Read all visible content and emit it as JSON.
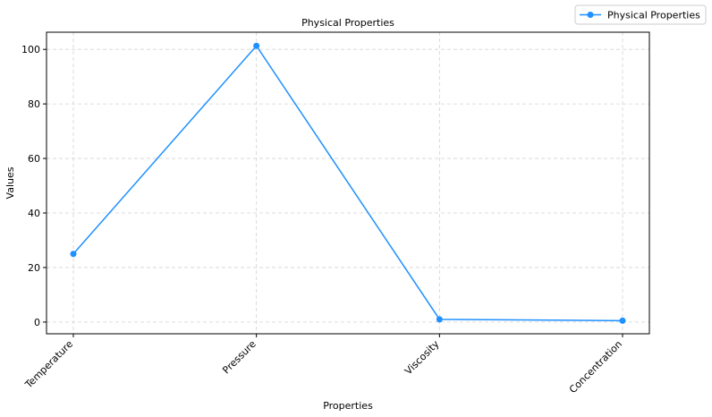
{
  "chart_data": {
    "type": "line",
    "title": "Physical Properties",
    "xlabel": "Properties",
    "ylabel": "Values",
    "categories": [
      "Temperature",
      "Pressure",
      "Viscosity",
      "Concentration"
    ],
    "series": [
      {
        "name": "Physical Properties",
        "values": [
          25,
          101.3,
          1.0,
          0.5
        ],
        "color": "#1e90ff"
      }
    ],
    "ylim": [
      -4.3,
      106.3
    ],
    "yticks": [
      0,
      20,
      40,
      60,
      80,
      100
    ],
    "grid": true,
    "legend_position": "top-right"
  }
}
